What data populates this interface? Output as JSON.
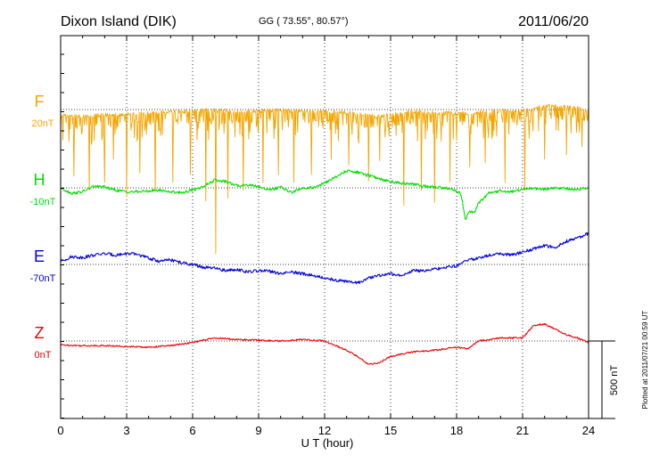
{
  "header": {
    "station": "Dixon Island (DIK)",
    "coords": "GG ( 73.55°,  80.57°)",
    "date": "2011/06/20"
  },
  "footer": {
    "plotted": "Plotted at 2011/07/21 00:59 UT"
  },
  "chart_data": {
    "type": "line",
    "title": "Dixon Island (DIK)",
    "subtitle": "GG ( 73.55°,  80.57°)",
    "date": "2011/06/20",
    "xlabel": "U T (hour)",
    "xlim": [
      0,
      24
    ],
    "xticks": [
      0,
      3,
      6,
      9,
      12,
      15,
      18,
      21,
      24
    ],
    "scale_bar": {
      "label": "500 nT",
      "value_nT": 500
    },
    "grid": "dotted vertical at every 3 h",
    "series": [
      {
        "name": "F",
        "baseline_label": "20nT",
        "color": "#f5a500",
        "style": "spiky",
        "x": [
          0,
          0.5,
          1,
          1.5,
          2,
          2.5,
          3,
          3.5,
          4,
          4.5,
          5,
          5.5,
          6,
          6.5,
          7,
          7.5,
          8,
          8.5,
          9,
          9.5,
          10,
          10.5,
          11,
          11.5,
          12,
          12.5,
          13,
          13.5,
          14,
          14.5,
          15,
          15.5,
          16,
          16.5,
          17,
          17.5,
          18,
          18.5,
          19,
          19.5,
          20,
          20.5,
          21,
          21.5,
          22,
          22.5,
          23,
          23.5,
          24
        ],
        "values": [
          -40,
          -45,
          -45,
          -40,
          -35,
          -35,
          -30,
          -25,
          -25,
          -20,
          -15,
          -15,
          -10,
          -5,
          -5,
          -10,
          -15,
          -15,
          -10,
          -5,
          -5,
          -10,
          -10,
          -10,
          -10,
          -15,
          -20,
          -30,
          -40,
          -45,
          -35,
          -20,
          -15,
          -20,
          -20,
          -25,
          -25,
          -25,
          -20,
          -10,
          -10,
          -10,
          -10,
          5,
          20,
          20,
          15,
          10,
          -5
        ],
        "dips": [
          {
            "x": 0.6,
            "v": -430
          },
          {
            "x": 1.3,
            "v": -520
          },
          {
            "x": 2.0,
            "v": -470
          },
          {
            "x": 2.4,
            "v": -320
          },
          {
            "x": 3.0,
            "v": -560
          },
          {
            "x": 3.6,
            "v": -410
          },
          {
            "x": 4.3,
            "v": -520
          },
          {
            "x": 5.1,
            "v": -470
          },
          {
            "x": 5.9,
            "v": -420
          },
          {
            "x": 6.6,
            "v": -590
          },
          {
            "x": 7.05,
            "v": -930
          },
          {
            "x": 7.6,
            "v": -570
          },
          {
            "x": 8.3,
            "v": -520
          },
          {
            "x": 9.2,
            "v": -470
          },
          {
            "x": 9.9,
            "v": -420
          },
          {
            "x": 10.6,
            "v": -470
          },
          {
            "x": 11.4,
            "v": -420
          },
          {
            "x": 12.3,
            "v": -320
          },
          {
            "x": 13.1,
            "v": -360
          },
          {
            "x": 14.0,
            "v": -460
          },
          {
            "x": 14.5,
            "v": -330
          },
          {
            "x": 15.6,
            "v": -620
          },
          {
            "x": 16.4,
            "v": -520
          },
          {
            "x": 17.0,
            "v": -600
          },
          {
            "x": 17.7,
            "v": -470
          },
          {
            "x": 18.6,
            "v": -370
          },
          {
            "x": 19.3,
            "v": -340
          },
          {
            "x": 20.2,
            "v": -470
          },
          {
            "x": 21.1,
            "v": -520
          },
          {
            "x": 22.0,
            "v": -320
          },
          {
            "x": 23.0,
            "v": -290
          },
          {
            "x": 23.7,
            "v": -240
          }
        ]
      },
      {
        "name": "H",
        "baseline_label": "-10nT",
        "color": "#00e000",
        "style": "line",
        "x": [
          0,
          0.5,
          1,
          1.5,
          2,
          2.5,
          3,
          3.5,
          4,
          4.5,
          5,
          5.5,
          6,
          6.5,
          7,
          7.5,
          8,
          8.5,
          9,
          9.5,
          10,
          10.5,
          11,
          11.5,
          12,
          12.5,
          13,
          13.5,
          14,
          14.5,
          15,
          15.5,
          16,
          16.5,
          17,
          17.5,
          18,
          18.2,
          18.4,
          18.6,
          18.8,
          19,
          19.5,
          20,
          20.5,
          21,
          21.5,
          22,
          22.5,
          23,
          23.5,
          24
        ],
        "values": [
          0,
          -35,
          -25,
          10,
          5,
          -15,
          -25,
          -25,
          -20,
          -15,
          -25,
          -30,
          -15,
          10,
          50,
          40,
          15,
          20,
          10,
          -15,
          5,
          -30,
          0,
          0,
          30,
          70,
          110,
          100,
          80,
          60,
          40,
          30,
          25,
          10,
          5,
          0,
          -20,
          -40,
          -200,
          -150,
          -160,
          -100,
          -30,
          -20,
          -25,
          -10,
          -5,
          -10,
          0,
          -5,
          -10,
          0
        ]
      },
      {
        "name": "E",
        "baseline_label": "-70nT",
        "color": "#0000dd",
        "style": "line",
        "x": [
          0,
          0.5,
          1,
          1.5,
          2,
          2.5,
          3,
          3.5,
          4,
          4.5,
          5,
          5.5,
          6,
          6.5,
          7,
          7.5,
          8,
          8.5,
          9,
          9.5,
          10,
          10.5,
          11,
          11.5,
          12,
          12.5,
          13,
          13.5,
          14,
          14.5,
          15,
          15.5,
          16,
          16.5,
          17,
          17.5,
          18,
          18.5,
          19,
          19.5,
          20,
          20.5,
          21,
          21.5,
          22,
          22.5,
          23,
          23.5,
          24
        ],
        "values": [
          20,
          50,
          45,
          60,
          70,
          60,
          70,
          65,
          40,
          20,
          30,
          10,
          0,
          -20,
          -25,
          -40,
          -30,
          -50,
          -40,
          -45,
          -60,
          -50,
          -60,
          -70,
          -90,
          -100,
          -110,
          -120,
          -90,
          -70,
          -60,
          -70,
          -40,
          -40,
          -30,
          -20,
          -10,
          30,
          40,
          60,
          70,
          60,
          80,
          100,
          120,
          110,
          150,
          170,
          200
        ]
      },
      {
        "name": "Z",
        "baseline_label": "0nT",
        "color": "#ee0000",
        "style": "line",
        "x": [
          0,
          1,
          2,
          3,
          4,
          5,
          6,
          7,
          8,
          9,
          10,
          11,
          12,
          13,
          13.5,
          14,
          14.5,
          15,
          16,
          17,
          18,
          18.5,
          19,
          20,
          21,
          21.5,
          22,
          23,
          23.5,
          24
        ],
        "values": [
          -25,
          -30,
          -30,
          -35,
          -40,
          -30,
          -10,
          20,
          10,
          5,
          0,
          10,
          0,
          -60,
          -100,
          -150,
          -140,
          -100,
          -70,
          -60,
          -40,
          -50,
          0,
          20,
          20,
          100,
          110,
          40,
          20,
          -10
        ]
      }
    ]
  }
}
